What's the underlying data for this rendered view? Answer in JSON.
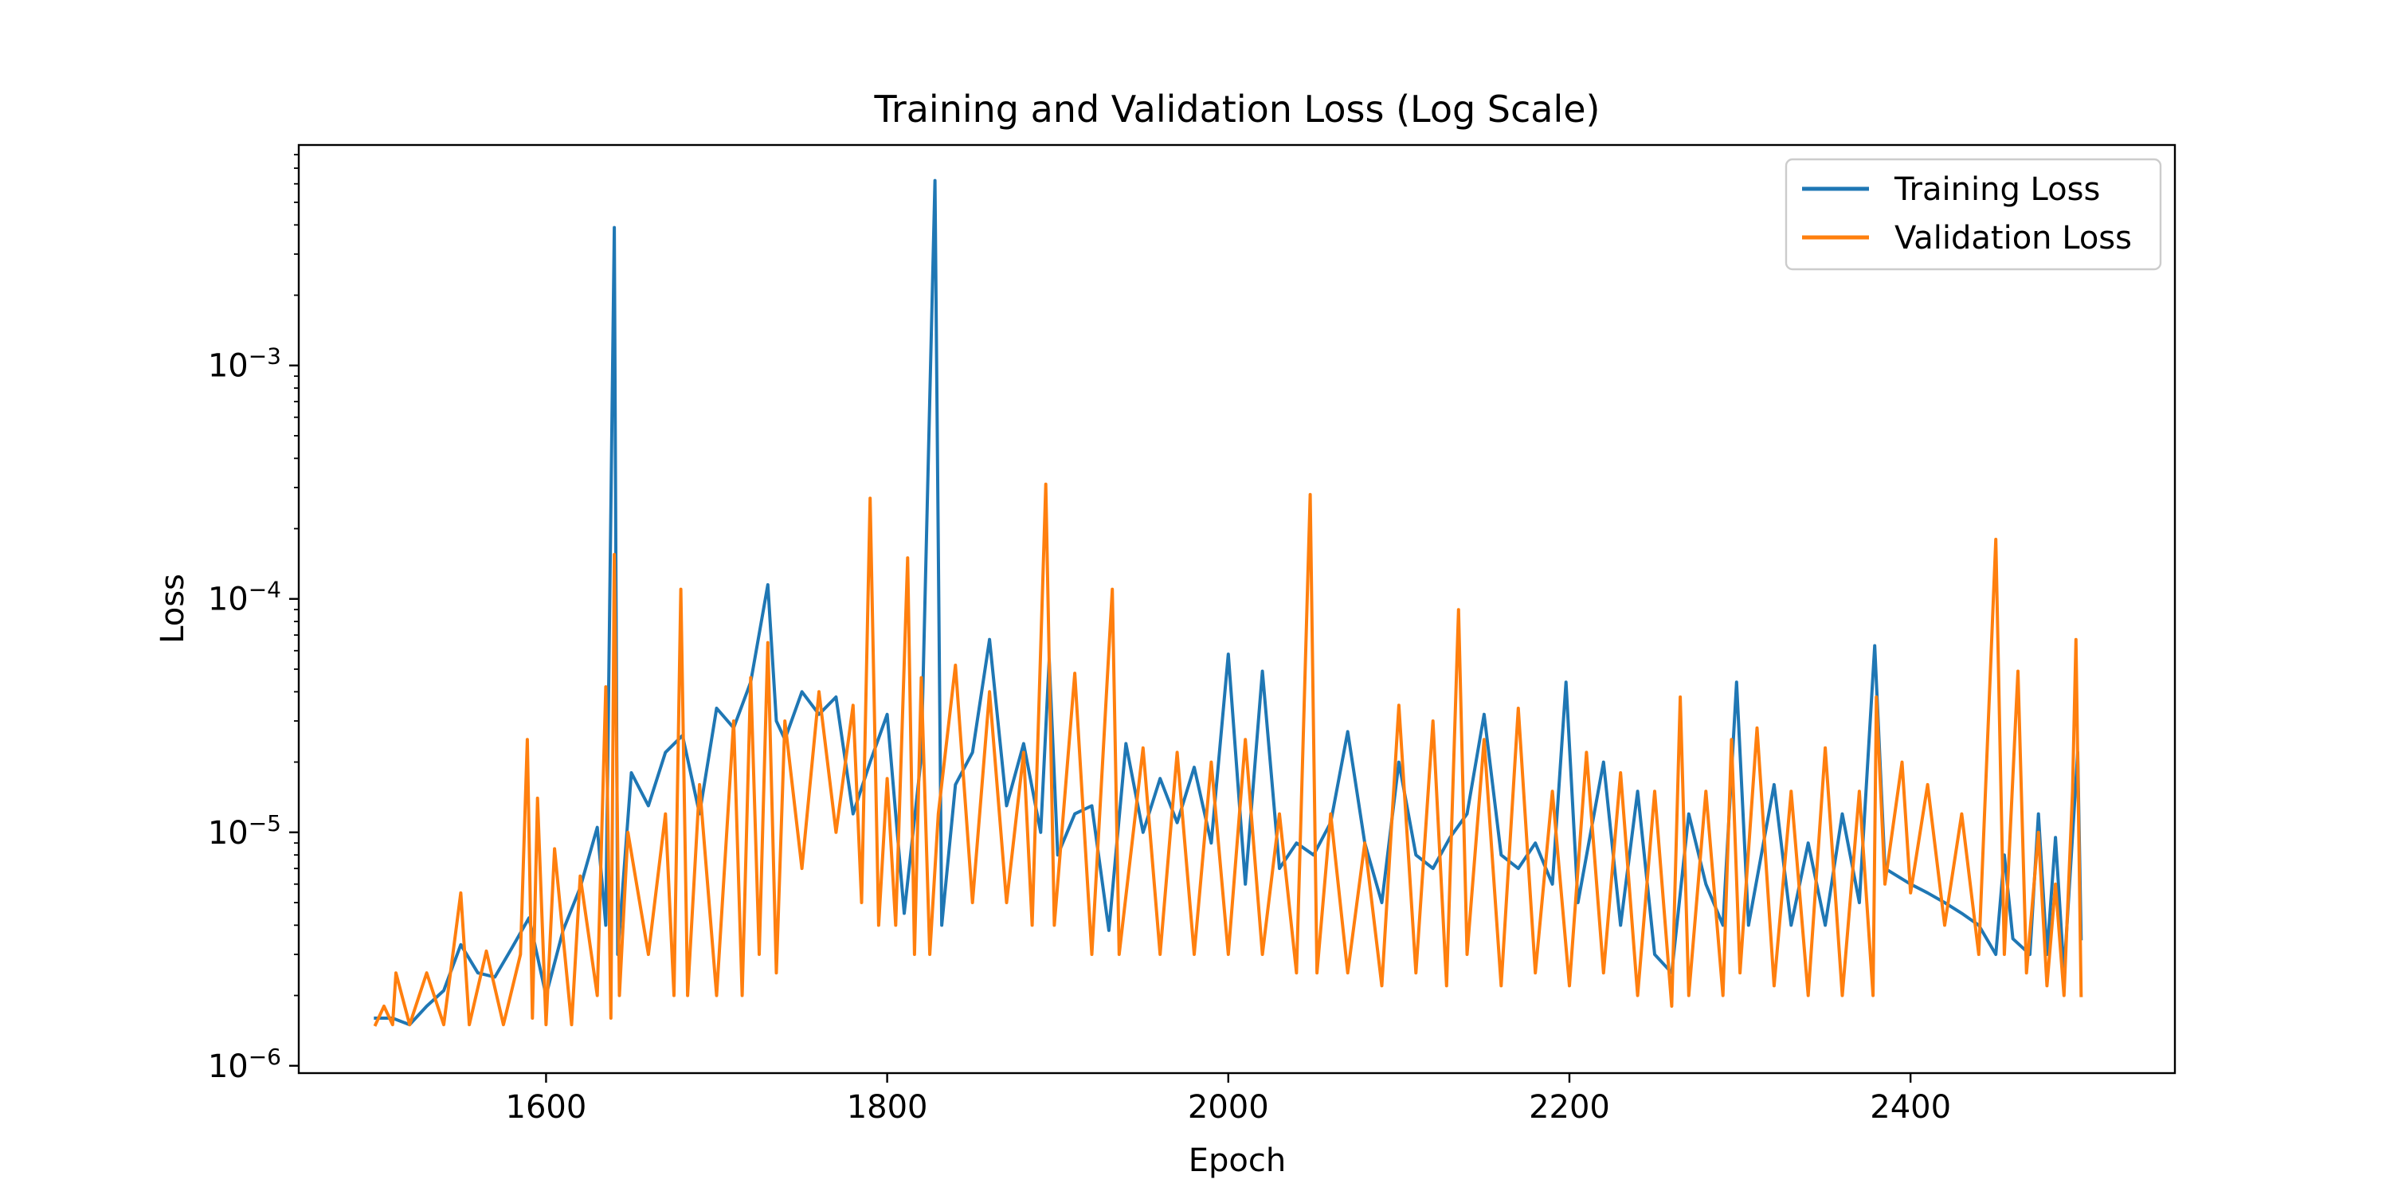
{
  "chart_data": {
    "type": "line",
    "title": "Training and Validation Loss (Log Scale)",
    "xlabel": "Epoch",
    "ylabel": "Loss",
    "yscale": "log",
    "xlim": [
      1455,
      2555
    ],
    "ylim": [
      9.3e-07,
      0.0088
    ],
    "xticks": [
      1600,
      1800,
      2000,
      2200,
      2400
    ],
    "yticks": [
      {
        "value": 1e-06,
        "base": "10",
        "exp": "−6"
      },
      {
        "value": 1e-05,
        "base": "10",
        "exp": "−5"
      },
      {
        "value": 0.0001,
        "base": "10",
        "exp": "−4"
      },
      {
        "value": 0.001,
        "base": "10",
        "exp": "−3"
      }
    ],
    "grid": false,
    "legend_position": "top-right",
    "colors": {
      "training": "#1f77b4",
      "validation": "#ff7f0e"
    },
    "series": [
      {
        "name": "Training Loss",
        "color": "#1f77b4",
        "points": [
          [
            1500,
            1.6e-06
          ],
          [
            1510,
            1.6e-06
          ],
          [
            1520,
            1.5e-06
          ],
          [
            1530,
            1.8e-06
          ],
          [
            1540,
            2.1e-06
          ],
          [
            1550,
            3.3e-06
          ],
          [
            1560,
            2.5e-06
          ],
          [
            1570,
            2.4e-06
          ],
          [
            1580,
            3.2e-06
          ],
          [
            1590,
            4.3e-06
          ],
          [
            1600,
            2e-06
          ],
          [
            1610,
            3.8e-06
          ],
          [
            1620,
            5.8e-06
          ],
          [
            1630,
            1.05e-05
          ],
          [
            1635,
            4e-06
          ],
          [
            1640,
            0.0039
          ],
          [
            1642,
            3e-06
          ],
          [
            1650,
            1.8e-05
          ],
          [
            1660,
            1.3e-05
          ],
          [
            1670,
            2.2e-05
          ],
          [
            1680,
            2.6e-05
          ],
          [
            1690,
            1.2e-05
          ],
          [
            1700,
            3.4e-05
          ],
          [
            1710,
            2.8e-05
          ],
          [
            1720,
            4.4e-05
          ],
          [
            1730,
            0.000115
          ],
          [
            1735,
            3e-05
          ],
          [
            1740,
            2.5e-05
          ],
          [
            1750,
            4e-05
          ],
          [
            1760,
            3.2e-05
          ],
          [
            1770,
            3.8e-05
          ],
          [
            1780,
            1.2e-05
          ],
          [
            1790,
            2e-05
          ],
          [
            1800,
            3.2e-05
          ],
          [
            1810,
            4.5e-06
          ],
          [
            1820,
            2.1e-05
          ],
          [
            1828,
            0.0062
          ],
          [
            1832,
            4e-06
          ],
          [
            1840,
            1.6e-05
          ],
          [
            1850,
            2.2e-05
          ],
          [
            1860,
            6.7e-05
          ],
          [
            1870,
            1.3e-05
          ],
          [
            1880,
            2.4e-05
          ],
          [
            1890,
            1e-05
          ],
          [
            1895,
            5.5e-05
          ],
          [
            1900,
            8e-06
          ],
          [
            1910,
            1.2e-05
          ],
          [
            1920,
            1.3e-05
          ],
          [
            1930,
            3.8e-06
          ],
          [
            1940,
            2.4e-05
          ],
          [
            1950,
            1e-05
          ],
          [
            1960,
            1.7e-05
          ],
          [
            1970,
            1.1e-05
          ],
          [
            1980,
            1.9e-05
          ],
          [
            1990,
            9e-06
          ],
          [
            2000,
            5.8e-05
          ],
          [
            2010,
            6e-06
          ],
          [
            2020,
            4.9e-05
          ],
          [
            2030,
            7e-06
          ],
          [
            2040,
            9e-06
          ],
          [
            2050,
            8e-06
          ],
          [
            2060,
            1.1e-05
          ],
          [
            2070,
            2.7e-05
          ],
          [
            2080,
            9e-06
          ],
          [
            2090,
            5e-06
          ],
          [
            2100,
            2e-05
          ],
          [
            2110,
            8e-06
          ],
          [
            2120,
            7e-06
          ],
          [
            2130,
            9.5e-06
          ],
          [
            2140,
            1.2e-05
          ],
          [
            2150,
            3.2e-05
          ],
          [
            2160,
            8e-06
          ],
          [
            2170,
            7e-06
          ],
          [
            2180,
            9e-06
          ],
          [
            2190,
            6e-06
          ],
          [
            2198,
            4.4e-05
          ],
          [
            2205,
            5e-06
          ],
          [
            2220,
            2e-05
          ],
          [
            2230,
            4e-06
          ],
          [
            2240,
            1.5e-05
          ],
          [
            2250,
            3e-06
          ],
          [
            2260,
            2.5e-06
          ],
          [
            2270,
            1.2e-05
          ],
          [
            2280,
            6e-06
          ],
          [
            2290,
            4e-06
          ],
          [
            2298,
            4.4e-05
          ],
          [
            2305,
            4e-06
          ],
          [
            2320,
            1.6e-05
          ],
          [
            2330,
            4e-06
          ],
          [
            2340,
            9e-06
          ],
          [
            2350,
            4e-06
          ],
          [
            2360,
            1.2e-05
          ],
          [
            2370,
            5e-06
          ],
          [
            2379,
            6.3e-05
          ],
          [
            2385,
            7e-06
          ],
          [
            2400,
            6e-06
          ],
          [
            2410,
            5.5e-06
          ],
          [
            2420,
            5e-06
          ],
          [
            2430,
            4.5e-06
          ],
          [
            2440,
            4e-06
          ],
          [
            2450,
            3e-06
          ],
          [
            2455,
            8e-06
          ],
          [
            2460,
            3.5e-06
          ],
          [
            2470,
            3e-06
          ],
          [
            2475,
            1.2e-05
          ],
          [
            2480,
            3e-06
          ],
          [
            2485,
            9.5e-06
          ],
          [
            2490,
            2.5e-06
          ],
          [
            2498,
            2.2e-05
          ],
          [
            2500,
            3.5e-06
          ]
        ]
      },
      {
        "name": "Validation Loss",
        "color": "#ff7f0e",
        "points": [
          [
            1500,
            1.5e-06
          ],
          [
            1505,
            1.8e-06
          ],
          [
            1510,
            1.5e-06
          ],
          [
            1512,
            2.5e-06
          ],
          [
            1520,
            1.5e-06
          ],
          [
            1530,
            2.5e-06
          ],
          [
            1540,
            1.5e-06
          ],
          [
            1550,
            5.5e-06
          ],
          [
            1555,
            1.5e-06
          ],
          [
            1565,
            3.1e-06
          ],
          [
            1575,
            1.5e-06
          ],
          [
            1585,
            3e-06
          ],
          [
            1589,
            2.5e-05
          ],
          [
            1592,
            1.6e-06
          ],
          [
            1595,
            1.4e-05
          ],
          [
            1600,
            1.5e-06
          ],
          [
            1605,
            8.5e-06
          ],
          [
            1615,
            1.5e-06
          ],
          [
            1620,
            6.5e-06
          ],
          [
            1630,
            2e-06
          ],
          [
            1635,
            4.2e-05
          ],
          [
            1638,
            1.6e-06
          ],
          [
            1640,
            0.000155
          ],
          [
            1643,
            2e-06
          ],
          [
            1648,
            1e-05
          ],
          [
            1660,
            3e-06
          ],
          [
            1670,
            1.2e-05
          ],
          [
            1675,
            2e-06
          ],
          [
            1679,
            0.00011
          ],
          [
            1683,
            2e-06
          ],
          [
            1690,
            1.6e-05
          ],
          [
            1700,
            2e-06
          ],
          [
            1710,
            3e-05
          ],
          [
            1715,
            2e-06
          ],
          [
            1720,
            4.6e-05
          ],
          [
            1725,
            3e-06
          ],
          [
            1730,
            6.5e-05
          ],
          [
            1735,
            2.5e-06
          ],
          [
            1740,
            3e-05
          ],
          [
            1750,
            7e-06
          ],
          [
            1760,
            4e-05
          ],
          [
            1770,
            1e-05
          ],
          [
            1780,
            3.5e-05
          ],
          [
            1785,
            5e-06
          ],
          [
            1790,
            0.00027
          ],
          [
            1795,
            4e-06
          ],
          [
            1800,
            1.7e-05
          ],
          [
            1805,
            4e-06
          ],
          [
            1812,
            0.00015
          ],
          [
            1816,
            3e-06
          ],
          [
            1820,
            4.6e-05
          ],
          [
            1825,
            3e-06
          ],
          [
            1830,
            1.2e-05
          ],
          [
            1840,
            5.2e-05
          ],
          [
            1850,
            5e-06
          ],
          [
            1860,
            4e-05
          ],
          [
            1870,
            5e-06
          ],
          [
            1880,
            2.2e-05
          ],
          [
            1885,
            4e-06
          ],
          [
            1893,
            0.00031
          ],
          [
            1898,
            4e-06
          ],
          [
            1910,
            4.8e-05
          ],
          [
            1920,
            3e-06
          ],
          [
            1932,
            0.00011
          ],
          [
            1936,
            3e-06
          ],
          [
            1950,
            2.3e-05
          ],
          [
            1960,
            3e-06
          ],
          [
            1970,
            2.2e-05
          ],
          [
            1980,
            3e-06
          ],
          [
            1990,
            2e-05
          ],
          [
            2000,
            3e-06
          ],
          [
            2010,
            2.5e-05
          ],
          [
            2020,
            3e-06
          ],
          [
            2030,
            1.2e-05
          ],
          [
            2040,
            2.5e-06
          ],
          [
            2048,
            0.00028
          ],
          [
            2052,
            2.5e-06
          ],
          [
            2060,
            1.2e-05
          ],
          [
            2070,
            2.5e-06
          ],
          [
            2080,
            9e-06
          ],
          [
            2090,
            2.2e-06
          ],
          [
            2100,
            3.5e-05
          ],
          [
            2110,
            2.5e-06
          ],
          [
            2120,
            3e-05
          ],
          [
            2128,
            2.2e-06
          ],
          [
            2135,
            9e-05
          ],
          [
            2140,
            3e-06
          ],
          [
            2150,
            2.5e-05
          ],
          [
            2160,
            2.2e-06
          ],
          [
            2170,
            3.4e-05
          ],
          [
            2180,
            2.5e-06
          ],
          [
            2190,
            1.5e-05
          ],
          [
            2200,
            2.2e-06
          ],
          [
            2210,
            2.2e-05
          ],
          [
            2220,
            2.5e-06
          ],
          [
            2230,
            1.8e-05
          ],
          [
            2240,
            2e-06
          ],
          [
            2250,
            1.5e-05
          ],
          [
            2260,
            1.8e-06
          ],
          [
            2265,
            3.8e-05
          ],
          [
            2270,
            2e-06
          ],
          [
            2280,
            1.5e-05
          ],
          [
            2290,
            2e-06
          ],
          [
            2295,
            2.5e-05
          ],
          [
            2300,
            2.5e-06
          ],
          [
            2310,
            2.8e-05
          ],
          [
            2320,
            2.2e-06
          ],
          [
            2330,
            1.5e-05
          ],
          [
            2340,
            2e-06
          ],
          [
            2350,
            2.3e-05
          ],
          [
            2360,
            2e-06
          ],
          [
            2370,
            1.5e-05
          ],
          [
            2378,
            2e-06
          ],
          [
            2380,
            3.8e-05
          ],
          [
            2385,
            6e-06
          ],
          [
            2395,
            2e-05
          ],
          [
            2400,
            5.5e-06
          ],
          [
            2410,
            1.6e-05
          ],
          [
            2420,
            4e-06
          ],
          [
            2430,
            1.2e-05
          ],
          [
            2440,
            3e-06
          ],
          [
            2450,
            0.00018
          ],
          [
            2455,
            3e-06
          ],
          [
            2463,
            4.9e-05
          ],
          [
            2468,
            2.5e-06
          ],
          [
            2475,
            1e-05
          ],
          [
            2480,
            2.2e-06
          ],
          [
            2485,
            6e-06
          ],
          [
            2490,
            2e-06
          ],
          [
            2495,
            1.5e-05
          ],
          [
            2497,
            6.7e-05
          ],
          [
            2500,
            2e-06
          ]
        ]
      }
    ]
  }
}
